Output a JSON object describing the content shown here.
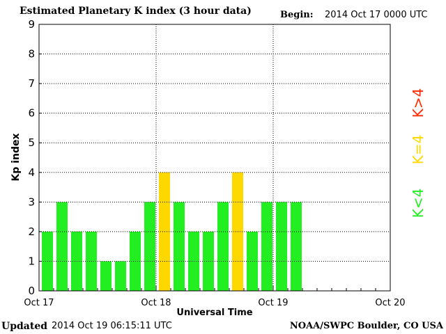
{
  "header": {
    "title": "Estimated Planetary K index (3 hour data)",
    "begin_label": "Begin:",
    "begin_value": "2014 Oct 17 0000 UTC"
  },
  "footer": {
    "updated_label": "Updated",
    "updated_value": "2014 Oct 19 06:15:11 UTC",
    "credit": "NOAA/SWPC Boulder, CO USA"
  },
  "legend": [
    {
      "label": "K>4",
      "color": "#ff2a00"
    },
    {
      "label": "K=4",
      "color": "#ffd800"
    },
    {
      "label": "K<4",
      "color": "#22ee22"
    }
  ],
  "chart_data": {
    "type": "bar",
    "title": "Estimated Planetary K index (3 hour data)",
    "xlabel": "Universal Time",
    "ylabel": "Kp index",
    "ylim": [
      0,
      9
    ],
    "yticks": [
      "0",
      "1",
      "2",
      "3",
      "4",
      "5",
      "6",
      "7",
      "8",
      "9"
    ],
    "xticks": [
      "Oct 17",
      "Oct 18",
      "Oct 19",
      "Oct 20"
    ],
    "grid": true,
    "bin_hours": 3,
    "values": [
      2,
      3,
      2,
      2,
      1,
      1,
      2,
      3,
      4,
      3,
      2,
      2,
      3,
      4,
      2,
      3,
      3,
      3
    ],
    "colors": {
      "below4": "#22ee22",
      "equal4": "#ffd800",
      "above4": "#ff2a00"
    }
  }
}
